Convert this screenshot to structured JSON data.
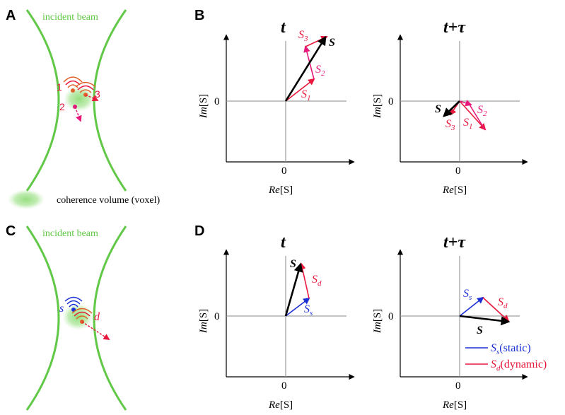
{
  "panels": {
    "A": "A",
    "B": "B",
    "C": "C",
    "D": "D"
  },
  "beam": {
    "label_top": "incident beam",
    "label_bottom": "incident beam",
    "scatterer_1": "1",
    "scatterer_2": "2",
    "scatterer_3": "3",
    "scatterer_s": "s",
    "scatterer_d": "d"
  },
  "legend_voxel": "coherence volume (voxel)",
  "axes": {
    "re_pre": "Re",
    "im_pre": "Im",
    "bracket_S": "[S]",
    "zero": "0"
  },
  "titles": {
    "t": "t",
    "t_tau": "t+τ"
  },
  "vectors": {
    "S": "S",
    "S1_main": "S",
    "S1_sub": "1",
    "S2_main": "S",
    "S2_sub": "2",
    "S3_main": "S",
    "S3_sub": "3",
    "Sd_main": "S",
    "Sd_sub": "d",
    "Ss_main": "S",
    "Ss_sub": "s"
  },
  "legend_D": {
    "static_main": "S",
    "static_sub": "s",
    "static_text": "(static)",
    "dynamic_main": "S",
    "dynamic_sub": "d",
    "dynamic_text": "(dynamic)"
  },
  "colors": {
    "beam_green": "#62c847",
    "voxel_green": "#9ee08a",
    "red": "#e8183c",
    "magenta": "#e8187a",
    "blue": "#1c2fd6",
    "orange": "#e0612a",
    "black": "#000000",
    "axis": "#000000"
  }
}
